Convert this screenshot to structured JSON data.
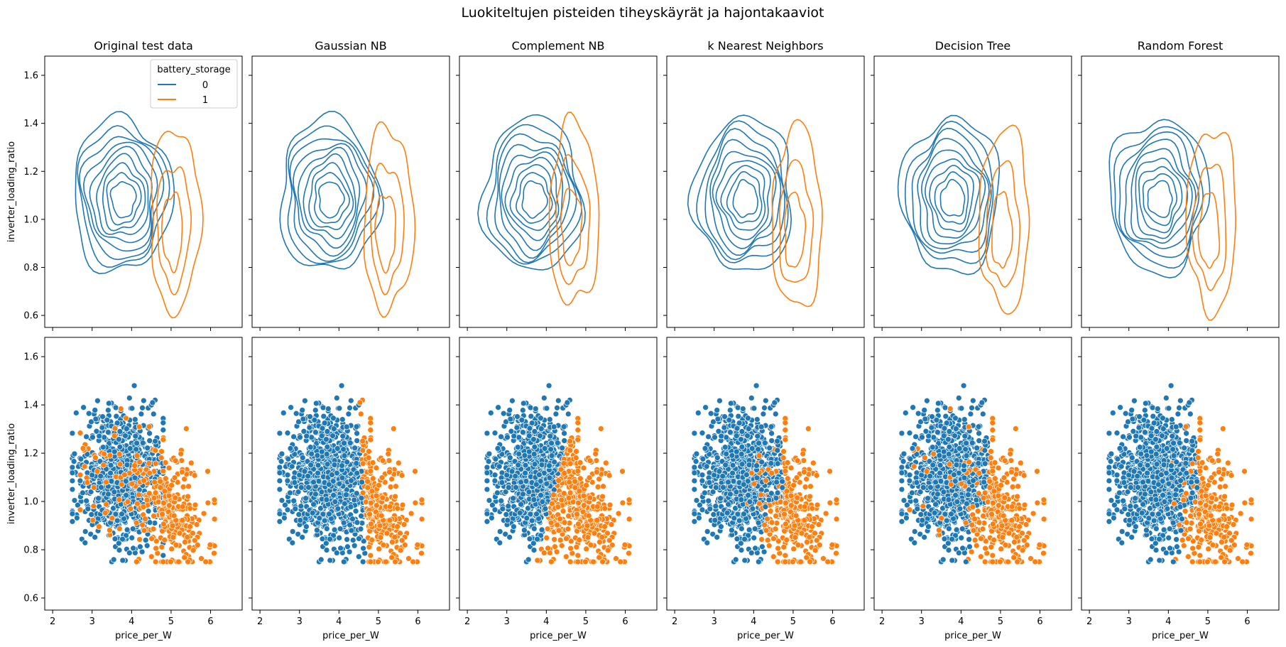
{
  "title": "Luokiteltujen pisteiden tiheyskäyrät ja hajontakaaviot",
  "colors": {
    "class0": "#1f77b4",
    "class1": "#ff7f0e"
  },
  "chart_data": {
    "type": "scatter",
    "layout": "2 rows x 6 columns (top: kde contour, bottom: scatter)",
    "xlabel": "price_per_W",
    "ylabel": "inverter_loading_ratio",
    "xlim": [
      1.8,
      6.8
    ],
    "ylim": [
      0.55,
      1.68
    ],
    "xticks": [
      2,
      3,
      4,
      5,
      6
    ],
    "yticks": [
      0.6,
      0.8,
      1.0,
      1.2,
      1.4,
      1.6
    ],
    "legend": {
      "title": "battery_storage",
      "entries": [
        "0",
        "1"
      ],
      "placement": "top-right (first panel)"
    },
    "panels": [
      {
        "title": "Original test data",
        "split": "original"
      },
      {
        "title": "Gaussian NB",
        "split": "gnb"
      },
      {
        "title": "Complement NB",
        "split": "cnb"
      },
      {
        "title": "k Nearest Neighbors",
        "split": "knn"
      },
      {
        "title": "Decision Tree",
        "split": "tree"
      },
      {
        "title": "Random Forest",
        "split": "rf"
      }
    ],
    "class_distributions": {
      "class_0": {
        "label": "0",
        "x_center": 3.75,
        "y_center": 1.1,
        "x_range": [
          2.5,
          4.8
        ],
        "y_range": [
          0.75,
          1.48
        ]
      },
      "class_1": {
        "label": "1",
        "x_center": 5.0,
        "y_center": 0.95,
        "x_range": [
          4.1,
          6.1
        ],
        "y_range": [
          0.75,
          1.45
        ]
      }
    }
  }
}
